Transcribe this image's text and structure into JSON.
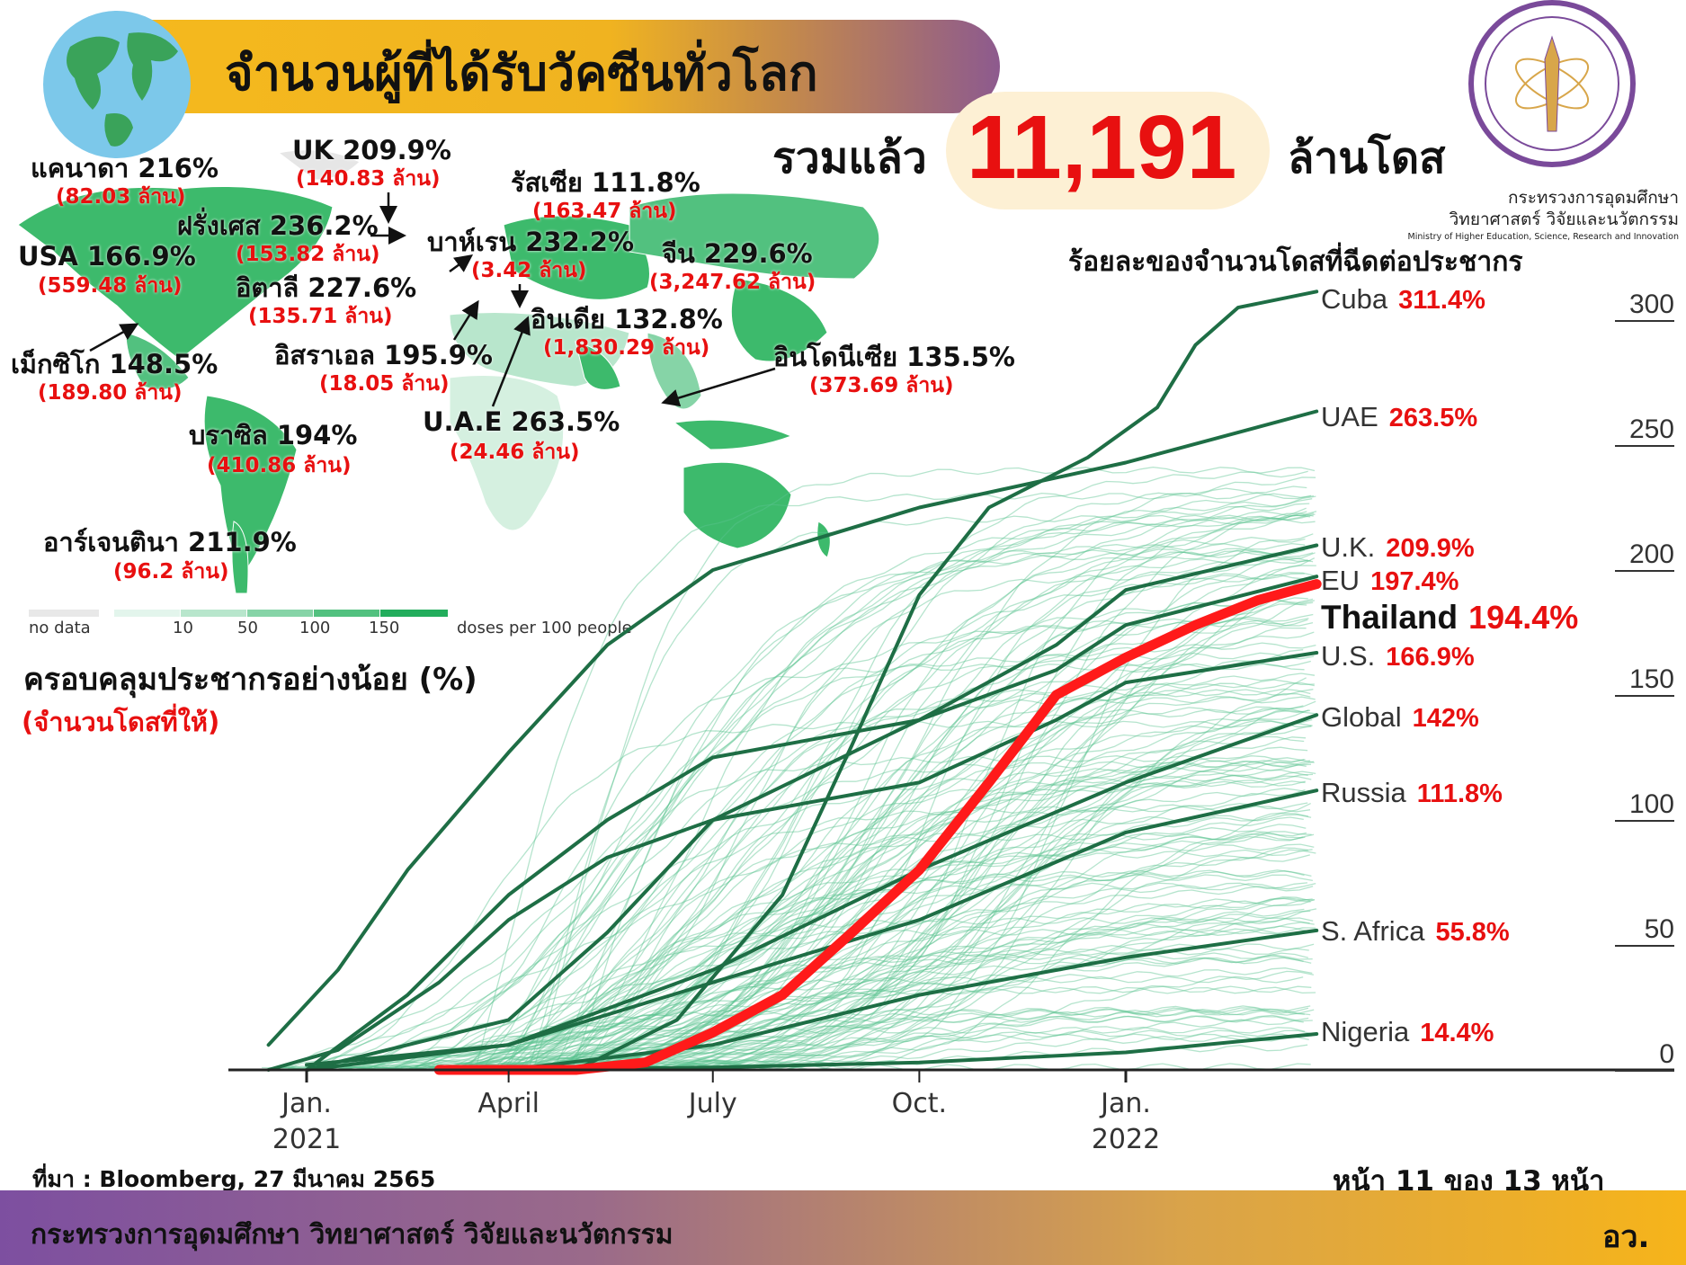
{
  "header": {
    "title": "จำนวนผู้ที่ได้รับวัคซีนทั่วโลก",
    "total_label": "รวมแล้ว",
    "total_value": "11,191",
    "total_unit": "ล้านโดส"
  },
  "ministry": {
    "name_th_1": "กระทรวงการอุดมศึกษา",
    "name_th_2": "วิทยาศาสตร์ วิจัยและนวัตกรรม",
    "name_en": "Ministry of Higher Education, Science, Research and Innovation"
  },
  "map": {
    "labels": [
      {
        "name": "UK 209.9%",
        "doses": "(140.83 ล้าน)"
      },
      {
        "name": "แคนาดา 216%",
        "doses": "(82.03 ล้าน)"
      },
      {
        "name": "รัสเซีย 111.8%",
        "doses": "(163.47 ล้าน)"
      },
      {
        "name": "ฝรั่งเศส 236.2%",
        "doses": "(153.82 ล้าน)"
      },
      {
        "name": "บาห์เรน 232.2%",
        "doses": "(3.42 ล้าน)"
      },
      {
        "name": "จีน 229.6%",
        "doses": "(3,247.62 ล้าน)"
      },
      {
        "name": "USA 166.9%",
        "doses": "(559.48 ล้าน)"
      },
      {
        "name": "อิตาลี 227.6%",
        "doses": "(135.71 ล้าน)"
      },
      {
        "name": "อินเดีย 132.8%",
        "doses": "(1,830.29 ล้าน)"
      },
      {
        "name": "อินโดนีเซีย 135.5%",
        "doses": "(373.69 ล้าน)"
      },
      {
        "name": "เม็กซิโก 148.5%",
        "doses": "(189.80 ล้าน)"
      },
      {
        "name": "อิสราเอล 195.9%",
        "doses": "(18.05 ล้าน)"
      },
      {
        "name": "U.A.E 263.5%",
        "doses": "(24.46 ล้าน)"
      },
      {
        "name": "บราซิล 194%",
        "doses": "(410.86 ล้าน)"
      },
      {
        "name": "อาร์เจนตินา 211.9%",
        "doses": "(96.2 ล้าน)"
      }
    ],
    "legend": {
      "no_data": "no data",
      "ticks": [
        "10",
        "50",
        "100",
        "150"
      ],
      "unit": "doses per 100 people",
      "colors": [
        "#e8e8e8",
        "#e3f5ec",
        "#b8e6cc",
        "#86d4a7",
        "#52c17f",
        "#22ad5c"
      ]
    },
    "title": "ครอบคลุมประชากรอย่างน้อย (%)",
    "subtitle": "(จำนวนโดสที่ให้)"
  },
  "chart_data": {
    "type": "line",
    "title": "ร้อยละของจำนวนโดสที่ฉีดต่อประชากร",
    "x_ticks": [
      {
        "date": "2021-01-01",
        "label": "Jan.",
        "label2": "2021"
      },
      {
        "date": "2021-04-01",
        "label": "April",
        "label2": ""
      },
      {
        "date": "2021-07-01",
        "label": "July",
        "label2": ""
      },
      {
        "date": "2021-10-01",
        "label": "Oct.",
        "label2": ""
      },
      {
        "date": "2022-01-01",
        "label": "Jan.",
        "label2": "2022"
      }
    ],
    "y_ticks": [
      "0",
      "50",
      "100",
      "150",
      "200",
      "250",
      "300"
    ],
    "ylim": [
      0,
      300
    ],
    "grid": false,
    "highlight_color": "#ff1a1a",
    "series_color": "#1e6e45",
    "background_color": "#5cc490",
    "series": [
      {
        "name": "Cuba",
        "label": "311.4%",
        "points": [
          [
            "2021-05-01",
            0
          ],
          [
            "2021-06-15",
            20
          ],
          [
            "2021-08-01",
            70
          ],
          [
            "2021-09-01",
            130
          ],
          [
            "2021-10-01",
            190
          ],
          [
            "2021-11-01",
            225
          ],
          [
            "2021-12-15",
            245
          ],
          [
            "2022-01-15",
            265
          ],
          [
            "2022-02-01",
            290
          ],
          [
            "2022-02-20",
            305
          ],
          [
            "2022-03-27",
            311.4
          ]
        ]
      },
      {
        "name": "UAE",
        "label": "263.5%",
        "points": [
          [
            "2020-12-15",
            10
          ],
          [
            "2021-01-15",
            40
          ],
          [
            "2021-02-15",
            80
          ],
          [
            "2021-04-01",
            127
          ],
          [
            "2021-05-15",
            170
          ],
          [
            "2021-07-01",
            200
          ],
          [
            "2021-10-01",
            225
          ],
          [
            "2022-01-01",
            243
          ],
          [
            "2022-03-27",
            263.5
          ]
        ]
      },
      {
        "name": "U.K.",
        "label": "209.9%",
        "points": [
          [
            "2021-01-01",
            0
          ],
          [
            "2021-02-15",
            30
          ],
          [
            "2021-04-01",
            70
          ],
          [
            "2021-05-15",
            100
          ],
          [
            "2021-07-01",
            125
          ],
          [
            "2021-10-01",
            140
          ],
          [
            "2021-12-01",
            170
          ],
          [
            "2022-01-01",
            192
          ],
          [
            "2022-03-27",
            209.9
          ]
        ]
      },
      {
        "name": "EU",
        "label": "197.4%",
        "points": [
          [
            "2021-01-01",
            0
          ],
          [
            "2021-04-01",
            20
          ],
          [
            "2021-05-15",
            55
          ],
          [
            "2021-07-01",
            100
          ],
          [
            "2021-10-01",
            140
          ],
          [
            "2021-12-01",
            160
          ],
          [
            "2022-01-01",
            178
          ],
          [
            "2022-03-27",
            197.4
          ]
        ]
      },
      {
        "name": "Thailand",
        "label": "194.4%",
        "points": [
          [
            "2021-03-01",
            0
          ],
          [
            "2021-05-01",
            0
          ],
          [
            "2021-06-01",
            3
          ],
          [
            "2021-07-01",
            15
          ],
          [
            "2021-08-01",
            30
          ],
          [
            "2021-09-01",
            55
          ],
          [
            "2021-10-01",
            80
          ],
          [
            "2021-11-01",
            115
          ],
          [
            "2021-12-01",
            150
          ],
          [
            "2022-01-01",
            165
          ],
          [
            "2022-02-01",
            178
          ],
          [
            "2022-03-01",
            188
          ],
          [
            "2022-03-27",
            194.4
          ]
        ]
      },
      {
        "name": "U.S.",
        "label": "166.9%",
        "points": [
          [
            "2020-12-15",
            0
          ],
          [
            "2021-01-15",
            8
          ],
          [
            "2021-03-01",
            35
          ],
          [
            "2021-04-01",
            60
          ],
          [
            "2021-05-15",
            85
          ],
          [
            "2021-07-01",
            100
          ],
          [
            "2021-10-01",
            115
          ],
          [
            "2021-12-01",
            140
          ],
          [
            "2022-01-01",
            155
          ],
          [
            "2022-03-27",
            166.9
          ]
        ]
      },
      {
        "name": "Global",
        "label": "142%",
        "points": [
          [
            "2021-01-01",
            0
          ],
          [
            "2021-04-01",
            10
          ],
          [
            "2021-07-01",
            40
          ],
          [
            "2021-10-01",
            80
          ],
          [
            "2022-01-01",
            115
          ],
          [
            "2022-03-27",
            142
          ]
        ]
      },
      {
        "name": "Russia",
        "label": "111.8%",
        "points": [
          [
            "2021-01-01",
            2
          ],
          [
            "2021-04-01",
            10
          ],
          [
            "2021-07-01",
            35
          ],
          [
            "2021-10-01",
            60
          ],
          [
            "2022-01-01",
            95
          ],
          [
            "2022-03-27",
            111.8
          ]
        ]
      },
      {
        "name": "S. Africa",
        "label": "55.8%",
        "points": [
          [
            "2021-04-01",
            0
          ],
          [
            "2021-07-01",
            10
          ],
          [
            "2021-10-01",
            30
          ],
          [
            "2022-01-01",
            45
          ],
          [
            "2022-03-27",
            55.8
          ]
        ]
      },
      {
        "name": "Nigeria",
        "label": "14.4%",
        "points": [
          [
            "2021-04-01",
            0
          ],
          [
            "2021-07-01",
            1
          ],
          [
            "2021-10-01",
            3
          ],
          [
            "2022-01-01",
            7
          ],
          [
            "2022-03-27",
            14.4
          ]
        ]
      }
    ]
  },
  "footer": {
    "source": "ที่มา : Bloomberg, 27 มีนาคม 2565",
    "page": "หน้า 11 ของ 13 หน้า",
    "ministry": "กระทรวงการอุดมศึกษา วิทยาศาสตร์ วิจัยและนวัตกรรม",
    "abbr": "อว."
  }
}
